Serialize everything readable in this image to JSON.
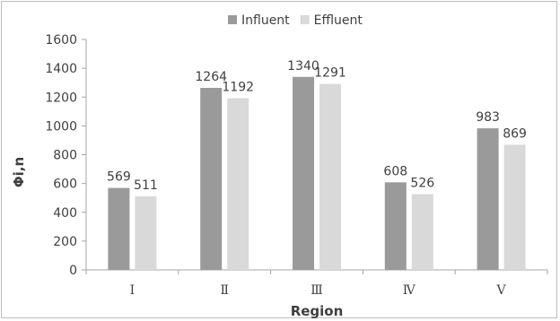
{
  "chart_data": {
    "type": "bar",
    "categories": [
      "Ⅰ",
      "Ⅱ",
      "Ⅲ",
      "Ⅳ",
      "Ⅴ"
    ],
    "series": [
      {
        "name": "Influent",
        "values": [
          569,
          1264,
          1340,
          608,
          983
        ],
        "color": "#9a9a9a"
      },
      {
        "name": "Effluent",
        "values": [
          511,
          1192,
          1291,
          526,
          869
        ],
        "color": "#d9d9d9"
      }
    ],
    "title": "",
    "xlabel": "Region",
    "ylabel": "Φi,n",
    "ylim": [
      0,
      1600
    ],
    "yticks": [
      0,
      200,
      400,
      600,
      800,
      1000,
      1200,
      1400,
      1600
    ],
    "grid": false,
    "legend_position": "top",
    "data_labels": true
  }
}
